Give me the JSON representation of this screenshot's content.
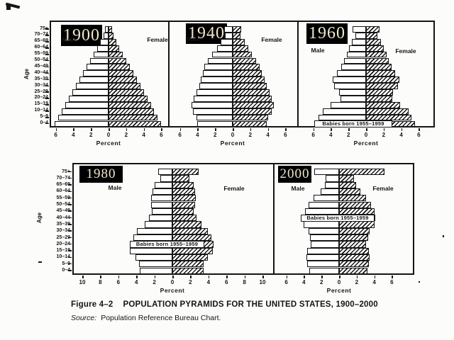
{
  "figure": {
    "caption_prefix": "Figure 4–2",
    "caption_title": "POPULATION PYRAMIDS FOR THE UNITED STATES, 1900–2000",
    "source_label": "Source:",
    "source_text": "Population Reference Bureau Chart."
  },
  "chart_data": {
    "type": "bar",
    "subtype": "population_pyramids",
    "xlabel": "Percent",
    "age_axis_label": "Age",
    "male_label": "Male",
    "female_label": "Female",
    "annotation_text": "Babies born 1955–1959",
    "age_groups_top_to_bottom": [
      "75+",
      "70–74",
      "65–69",
      "60–64",
      "55–59",
      "50–54",
      "45–49",
      "40–44",
      "35–39",
      "30–34",
      "25–29",
      "20–24",
      "15–19",
      "10–14",
      "5–9",
      "0–4"
    ],
    "pyramids": [
      {
        "year": "1900",
        "row": "top",
        "x_ticks": [
          "6",
          "4",
          "2",
          "0",
          "2",
          "4",
          "6"
        ],
        "xlim": 6,
        "male": [
          0.4,
          0.6,
          1.0,
          1.3,
          1.7,
          2.1,
          2.5,
          2.9,
          3.3,
          3.7,
          4.1,
          4.5,
          4.9,
          5.3,
          5.7,
          6.1
        ],
        "female": [
          0.4,
          0.6,
          0.9,
          1.2,
          1.6,
          2.0,
          2.4,
          2.8,
          3.2,
          3.6,
          4.0,
          4.4,
          4.8,
          5.2,
          5.6,
          6.0
        ],
        "annotation_age_group": null
      },
      {
        "year": "1940",
        "row": "top",
        "x_ticks": [
          "6",
          "4",
          "2",
          "0",
          "2",
          "4",
          "6"
        ],
        "xlim": 6,
        "male": [
          1.0,
          0.9,
          1.4,
          1.8,
          2.3,
          2.8,
          3.2,
          3.4,
          3.6,
          3.8,
          4.1,
          4.4,
          4.7,
          4.5,
          4.1,
          4.0
        ],
        "female": [
          1.0,
          0.9,
          1.4,
          1.8,
          2.2,
          2.7,
          3.1,
          3.3,
          3.6,
          3.9,
          4.2,
          4.4,
          4.7,
          4.4,
          4.0,
          3.9
        ],
        "annotation_age_group": null
      },
      {
        "year": "1960",
        "row": "top",
        "x_ticks": [
          "6",
          "4",
          "2",
          "0",
          "2",
          "4",
          "6"
        ],
        "xlim": 6,
        "male": [
          1.5,
          1.2,
          1.6,
          1.9,
          2.2,
          2.5,
          2.8,
          3.3,
          3.8,
          3.6,
          3.1,
          2.9,
          4.0,
          4.9,
          5.4,
          5.7
        ],
        "female": [
          1.5,
          1.3,
          1.7,
          2.0,
          2.3,
          2.6,
          2.9,
          3.3,
          3.8,
          3.6,
          3.1,
          3.0,
          3.9,
          4.8,
          5.2,
          5.6
        ],
        "annotation_age_group": "0–4"
      },
      {
        "year": "1980",
        "row": "bottom",
        "x_ticks": [
          "10",
          "8",
          "6",
          "4",
          "2",
          "0",
          "2",
          "4",
          "6",
          "8",
          "10"
        ],
        "xlim": 10,
        "male": [
          1.6,
          1.3,
          2.0,
          2.2,
          2.4,
          2.4,
          2.3,
          2.6,
          3.1,
          3.9,
          4.3,
          4.7,
          4.7,
          4.1,
          3.7,
          3.6
        ],
        "female": [
          2.9,
          1.9,
          2.4,
          2.5,
          2.6,
          2.5,
          2.4,
          2.7,
          3.2,
          3.9,
          4.3,
          4.6,
          4.5,
          3.9,
          3.5,
          3.5
        ],
        "annotation_age_group": "20–24"
      },
      {
        "year": "2000",
        "row": "bottom",
        "x_ticks": [
          "6",
          "4",
          "2",
          "0",
          "2",
          "4",
          "6"
        ],
        "xlim": 6,
        "male": [
          2.8,
          1.5,
          1.6,
          2.1,
          2.9,
          3.5,
          3.9,
          4.1,
          4.0,
          3.5,
          3.3,
          3.2,
          3.6,
          3.7,
          3.6,
          3.4
        ],
        "female": [
          5.2,
          1.7,
          1.9,
          2.4,
          3.1,
          3.6,
          4.0,
          4.1,
          4.0,
          3.5,
          3.3,
          3.1,
          3.4,
          3.5,
          3.4,
          3.2
        ],
        "annotation_age_group": "40–44"
      }
    ]
  },
  "colors": {
    "ink": "#151515",
    "paper": "#fcfcfb",
    "year_box_bg": "#000000",
    "year_text": "#efe8cd"
  }
}
